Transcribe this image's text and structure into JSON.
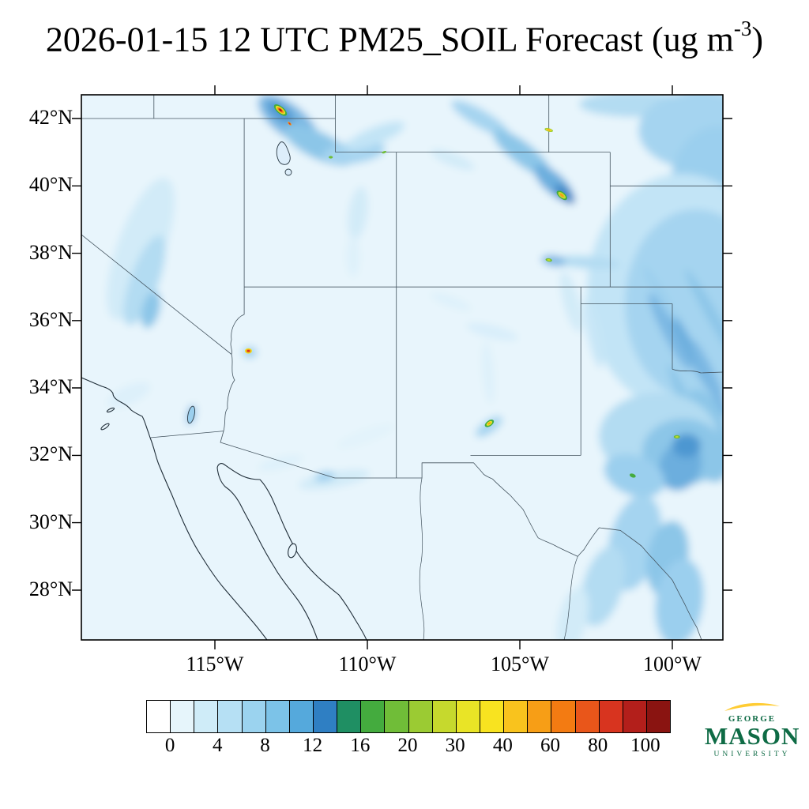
{
  "title": {
    "main": "2026-01-15 12 UTC PM25_SOIL Forecast (ug m",
    "exponent": "-3",
    "close": ")"
  },
  "axes": {
    "lat_ticks": [
      "42°N",
      "40°N",
      "38°N",
      "36°N",
      "34°N",
      "32°N",
      "30°N",
      "28°N"
    ],
    "lon_ticks": [
      "115°W",
      "110°W",
      "105°W",
      "100°W"
    ]
  },
  "colorbar": {
    "tick_labels": [
      "0",
      "4",
      "8",
      "12",
      "16",
      "20",
      "30",
      "40",
      "60",
      "80",
      "100"
    ],
    "colors": [
      "#ffffff",
      "#e6f5fb",
      "#cfecf8",
      "#b6e0f4",
      "#9bd3ef",
      "#7cc3e8",
      "#55a9dc",
      "#2f7fc3",
      "#1f8f63",
      "#44ab3e",
      "#70bd38",
      "#9bcb33",
      "#c6d92d",
      "#e9e426",
      "#f8e320",
      "#f9c31d",
      "#f79e16",
      "#f37b12",
      "#e9561a",
      "#d8341f",
      "#b31f1b",
      "#8a1411"
    ]
  },
  "logo": {
    "george": "GEORGE",
    "mason": "MASON",
    "university": "UNIVERSITY",
    "green": "#0e6b45",
    "gold": "#ffcc33"
  },
  "chart_data": {
    "type": "filled_contour_map",
    "title": "2026-01-15 12 UTC PM25_SOIL Forecast (ug m-3)",
    "variable": "PM25_SOIL",
    "valid_time": "2026-01-15 12 UTC",
    "units": "ug m-3",
    "lat_axis_deg_north": [
      28,
      30,
      32,
      34,
      36,
      38,
      40,
      42
    ],
    "lon_axis_deg_west": [
      115,
      110,
      105,
      100
    ],
    "colorbar_tick_values": [
      0,
      4,
      8,
      12,
      16,
      20,
      30,
      40,
      60,
      80,
      100
    ],
    "background_value_range": "0-4 over most of the domain, including ocean",
    "plumes": [
      {
        "lon": -112.6,
        "lat": 42.0,
        "value_range": "4-16"
      },
      {
        "lon": -104.3,
        "lat": 40.8,
        "value_range": "4-16"
      },
      {
        "lon": -118.8,
        "lat": 36.3,
        "value_range": "2-8"
      },
      {
        "lon": -99.5,
        "lat": 37.5,
        "value_range": "2-10"
      },
      {
        "lon": -100.5,
        "lat": 32.0,
        "value_range": "4-16"
      },
      {
        "lon": -101.8,
        "lat": 28.5,
        "value_range": "2-10"
      }
    ],
    "hotspots": [
      {
        "lon": -112.85,
        "lat": 42.25,
        "rot": 40,
        "peak_ug_m3": "100+",
        "rings": [
          [
            "#44ab3e",
            10,
            4.5
          ],
          [
            "#e9e426",
            7.5,
            3.2
          ],
          [
            "#f79e16",
            5.5,
            2.3
          ],
          [
            "#d8341f",
            3.2,
            1.4
          ],
          [
            "#8a1411",
            1.6,
            0.8
          ]
        ]
      },
      {
        "lon": -112.55,
        "lat": 41.85,
        "rot": 45,
        "peak_ug_m3": "60-80",
        "rings": [
          [
            "#f79e16",
            3,
            1.4
          ],
          [
            "#d8341f",
            1.6,
            0.8
          ]
        ]
      },
      {
        "lon": -104.05,
        "lat": 41.66,
        "rot": 15,
        "peak_ug_m3": "40-60",
        "rings": [
          [
            "#9bcb33",
            5.5,
            2.2
          ],
          [
            "#e9e426",
            3.8,
            1.5
          ],
          [
            "#f79e16",
            2.2,
            0.9
          ]
        ]
      },
      {
        "lon": -103.62,
        "lat": 39.72,
        "rot": 40,
        "peak_ug_m3": "40-60",
        "rings": [
          [
            "#44ab3e",
            8,
            4
          ],
          [
            "#c6d92d",
            5.8,
            2.8
          ],
          [
            "#f79e16",
            3,
            1.4
          ]
        ]
      },
      {
        "lon": -111.2,
        "lat": 40.85,
        "rot": 0,
        "peak_ug_m3": "16-20",
        "rings": [
          [
            "#70bd38",
            2.6,
            1.6
          ]
        ]
      },
      {
        "lon": -109.45,
        "lat": 41.0,
        "rot": -20,
        "peak_ug_m3": "16-20",
        "rings": [
          [
            "#70bd38",
            3,
            1.4
          ]
        ]
      },
      {
        "lon": -113.9,
        "lat": 35.1,
        "rot": 0,
        "peak_ug_m3": "80-100",
        "rings": [
          [
            "#e9e426",
            4.5,
            3.4
          ],
          [
            "#f79e16",
            3.2,
            2.3
          ],
          [
            "#d8341f",
            1.9,
            1.3
          ]
        ]
      },
      {
        "lon": -106.0,
        "lat": 32.95,
        "rot": -35,
        "peak_ug_m3": "30-50",
        "rings": [
          [
            "#44ab3e",
            6.5,
            3.6
          ],
          [
            "#e9e426",
            4.2,
            2.2
          ],
          [
            "#f79e16",
            2.1,
            1.1
          ]
        ]
      },
      {
        "lon": -104.05,
        "lat": 37.8,
        "rot": 10,
        "peak_ug_m3": "20-30",
        "rings": [
          [
            "#70bd38",
            4.2,
            2.1
          ],
          [
            "#c6d92d",
            2.2,
            1.1
          ]
        ]
      },
      {
        "lon": -101.3,
        "lat": 31.4,
        "rot": 20,
        "peak_ug_m3": "16-25",
        "rings": [
          [
            "#44ab3e",
            4,
            2.4
          ]
        ]
      },
      {
        "lon": -99.85,
        "lat": 32.55,
        "rot": 0,
        "peak_ug_m3": "20-30",
        "rings": [
          [
            "#70bd38",
            4,
            2.2
          ],
          [
            "#c6d92d",
            2,
            1
          ]
        ]
      }
    ],
    "projection_pixel_mapping": {
      "x_per_deg_lon": 38.6,
      "y_per_deg_lat": 42.64,
      "lon_at_x169": -115,
      "lat_at_y30": 42
    }
  }
}
